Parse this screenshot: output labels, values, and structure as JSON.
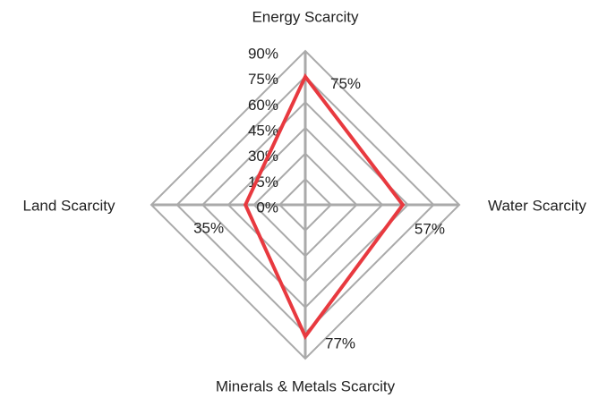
{
  "chart_data": {
    "type": "radar",
    "categories": [
      "Energy Scarcity",
      "Water Scarcity",
      "Minerals & Metals Scarcity",
      "Land Scarcity"
    ],
    "series": [
      {
        "color": "#e8393f",
        "values": [
          75,
          57,
          77,
          35
        ],
        "value_labels": [
          "75%",
          "57%",
          "77%",
          "35%"
        ]
      }
    ],
    "ylim": [
      0,
      90
    ],
    "yticks": [
      {
        "value": 0,
        "label": "0%"
      },
      {
        "value": 15,
        "label": "15%"
      },
      {
        "value": 30,
        "label": "30%"
      },
      {
        "value": 45,
        "label": "45%"
      },
      {
        "value": 60,
        "label": "60%"
      },
      {
        "value": 75,
        "label": "75%"
      },
      {
        "value": 90,
        "label": "90%"
      }
    ],
    "grid": true
  }
}
